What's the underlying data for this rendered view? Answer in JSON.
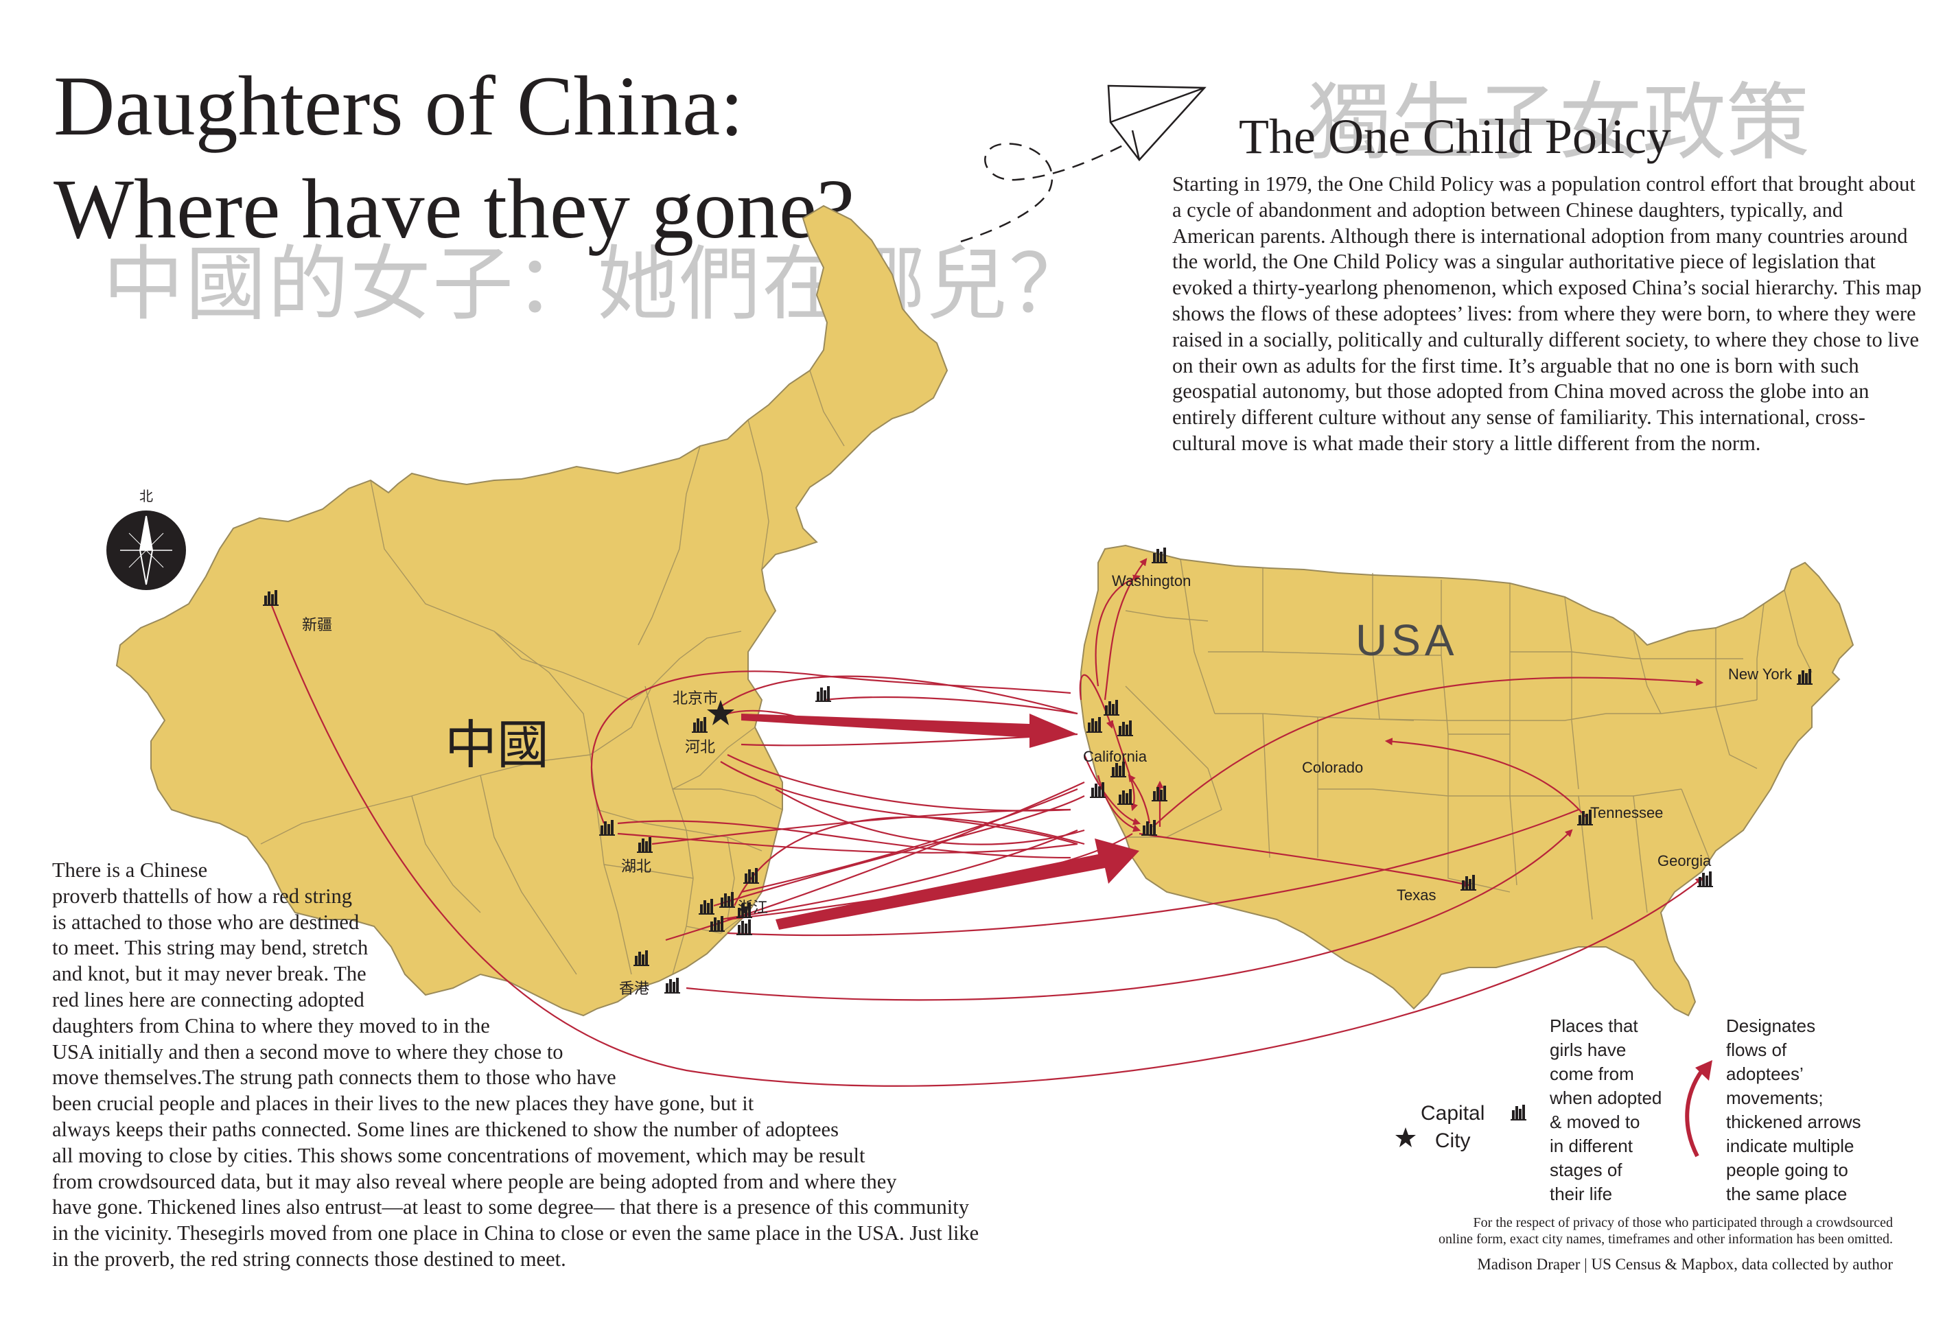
{
  "title": {
    "line1": "Daughters of China:",
    "line2": "Where have they gone?",
    "chinese": "中國的女子：她們在哪兒？"
  },
  "policy": {
    "chinese": "獨生子女政策",
    "heading": "The One Child Policy",
    "text": "Starting in 1979, the One Child Policy was a population control effort that brought about a cycle of abandonment and adoption between Chinese daughters, typically, and American parents. Although there is international adoption from many countries around the world, the One Child Policy was a singular authoritative piece of  legislation that evoked a thirty-yearlong phenomenon, which exposed China’s social hierarchy. This map shows the flows of these adoptees’ lives: from where they were born, to where they were raised in a socially, politically and culturally different society, to where they chose to live on their own as adults for the first time. It’s arguable that no one is born with such geospatial autonomy, but those adopted from China moved across the globe into an entirely different culture without any sense of familiarity. This international, cross-cultural move is what made their story a little different from the norm."
  },
  "proverb_lines": [
    "There is a Chinese",
    "proverb thattells of how a red string",
    "is attached to those who are destined",
    "to meet. This string may bend, stretch",
    "and knot, but it may never break. The",
    "red lines here are connecting adopted",
    "daughters from China to where they moved to in the",
    "USA initially and then a second move to where they chose to",
    "move themselves.The strung path connects them to those who have",
    "been crucial people and places in their lives to the new places they have gone, but it",
    "always keeps their paths connected. Some lines are thickened to show the number of adoptees",
    "all moving to close by cities. This shows some concentrations of movement, which may be result",
    "from crowdsourced data, but it may also reveal where people are being adopted from and where they",
    "have gone. Thickened lines also entrust—at least to some degree— that there is a presence of this community",
    "in the vicinity. Thesegirls moved from one place in China to close or even the same place in the USA. Just like",
    "in the proverb, the red string connects those destined to meet."
  ],
  "map": {
    "compass_label": "北",
    "china_label": "中國",
    "usa_label": "USA",
    "china_places": [
      "新疆",
      "北京市",
      "河北",
      "湖北",
      "浙江",
      "香港"
    ],
    "usa_places": [
      "Washington",
      "California",
      "Colorado",
      "Texas",
      "Tennessee",
      "Georgia",
      "New York"
    ],
    "colors": {
      "land": "#e8c96a",
      "border": "#9a8a5a",
      "flow": "#b8243a",
      "compass": "#231f20"
    }
  },
  "legend": {
    "capital_label_line1": "Capital",
    "capital_label_line2": "City",
    "places_lines": [
      "Places that",
      "girls have",
      "come from",
      "when adopted",
      "& moved to",
      "in different",
      "stages of",
      "their life"
    ],
    "flows_lines": [
      "Designates",
      "flows of",
      "adoptees’",
      "movements;",
      "thickened arrows",
      "indicate multiple",
      "people going to",
      "the same place"
    ]
  },
  "footer": {
    "privacy_line1": "For the respect of privacy of those who participated through a crowdsourced",
    "privacy_line2": "online form, exact city names, timeframes and other information  has been omitted.",
    "credits": "Madison Draper | US Census & Mapbox, data collected by author"
  }
}
